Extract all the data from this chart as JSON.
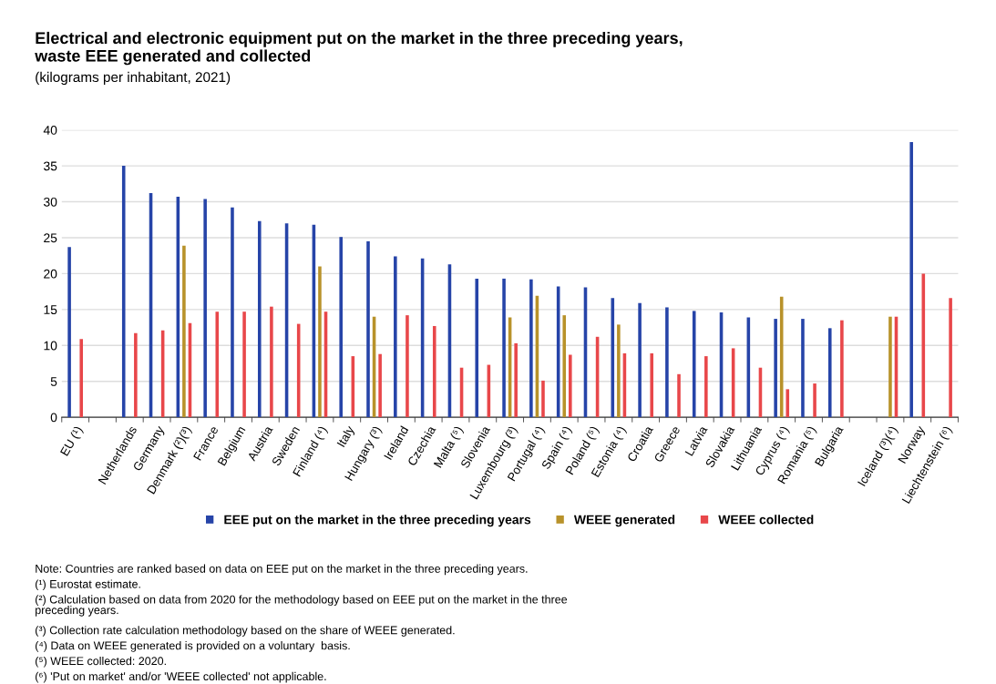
{
  "chart_data": {
    "type": "bar",
    "title": "Electrical and electronic equipment put on the market in the three preceding years,\nwaste EEE generated and collected",
    "subtitle": "(kilograms per inhabitant, 2021)",
    "categories": [
      "EU (¹)",
      null,
      "Netherlands",
      "Germany",
      "Denmark (²)(³)",
      "France",
      "Belgium",
      "Austria",
      "Sweden",
      "Finland (⁴)",
      "Italy",
      "Hungary (³)",
      "Ireland",
      "Czechia",
      "Malta (⁵)",
      "Slovenia",
      "Luxembourg (³)",
      "Portugal (⁴)",
      "Spain (⁴)",
      "Poland (⁵)",
      "Estonia (⁴)",
      "Croatia",
      "Greece",
      "Latvia",
      "Slovakia",
      "Lithuania",
      "Cyprus (⁴)",
      "Romania (⁵)",
      "Bulgaria",
      null,
      "Iceland (³)(⁴)",
      "Norway",
      "Liechtenstein (⁶)"
    ],
    "series": [
      {
        "name": "EEE put on the market in the three preceding years",
        "color": "#2644a8",
        "values": [
          23.7,
          null,
          35.0,
          31.2,
          30.7,
          30.4,
          29.2,
          27.3,
          27.0,
          26.8,
          25.1,
          24.5,
          22.4,
          22.1,
          21.3,
          19.3,
          19.3,
          19.2,
          18.2,
          18.1,
          16.6,
          15.9,
          15.3,
          14.8,
          14.6,
          13.9,
          13.7,
          13.7,
          12.4,
          null,
          null,
          38.3,
          null
        ]
      },
      {
        "name": "WEEE generated",
        "color": "#b8922a",
        "values": [
          null,
          null,
          null,
          null,
          23.9,
          null,
          null,
          null,
          null,
          21.0,
          null,
          14.0,
          null,
          null,
          null,
          null,
          13.9,
          16.9,
          14.2,
          null,
          12.9,
          null,
          null,
          null,
          null,
          null,
          16.8,
          null,
          null,
          null,
          14.0,
          null,
          null
        ]
      },
      {
        "name": "WEEE collected",
        "color": "#e8474a",
        "values": [
          10.9,
          null,
          11.7,
          12.1,
          13.1,
          14.7,
          14.7,
          15.4,
          13.0,
          14.7,
          8.5,
          8.8,
          14.2,
          12.7,
          6.9,
          7.3,
          10.3,
          5.1,
          8.7,
          11.2,
          8.9,
          8.9,
          6.0,
          8.5,
          9.6,
          6.9,
          3.9,
          4.7,
          13.5,
          null,
          14.0,
          20.0,
          16.6
        ]
      }
    ],
    "ylim": [
      0,
      40
    ],
    "yticks": [
      0,
      5,
      10,
      15,
      20,
      25,
      30,
      35,
      40
    ],
    "grid": "y",
    "legend": "bottom",
    "annotations": [
      "Note: Countries are ranked based on data on EEE put on the market in the three preceding years.",
      "(¹) Eurostat estimate.",
      "(²) Calculation based on data from 2020 for the methodology based on EEE put on the market in the three\npreceding years.",
      "(³) Collection rate calculation methodology based on the share of WEEE generated.",
      "(⁴) Data on WEEE generated is provided on a voluntary  basis.",
      "(⁵) WEEE collected: 2020.",
      "(⁶) 'Put on market' and/or 'WEEE collected' not applicable."
    ]
  }
}
